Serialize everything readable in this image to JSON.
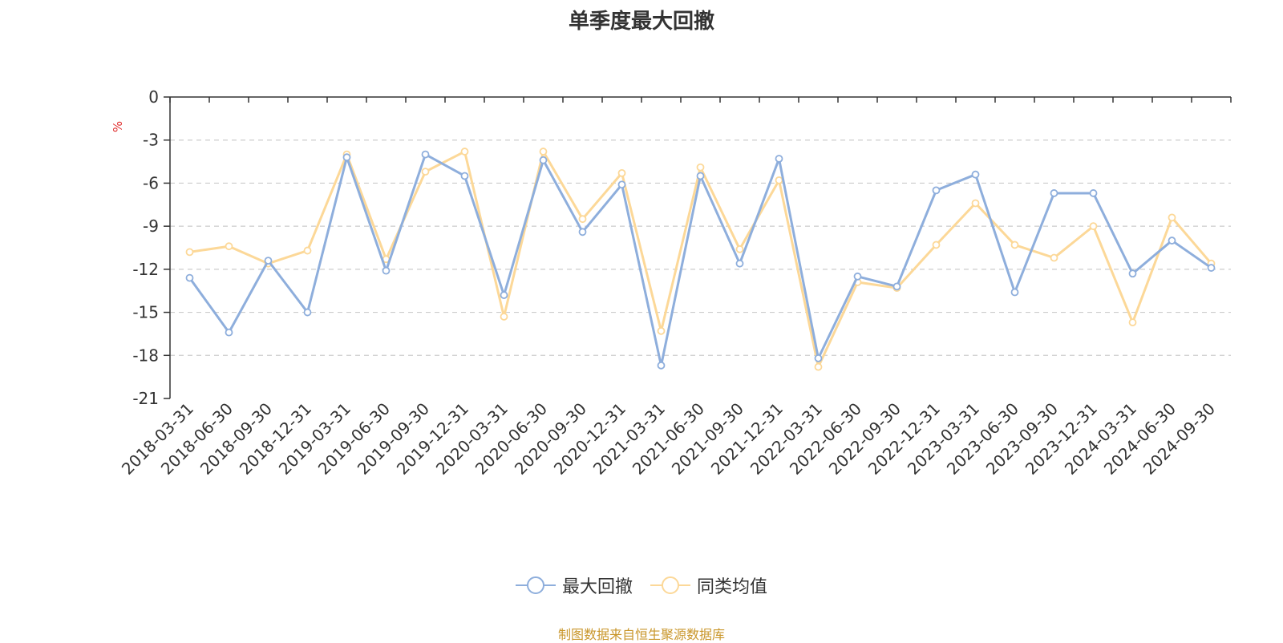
{
  "chart_data": {
    "type": "line",
    "title": "单季度最大回撤",
    "ylabel": "%",
    "ylim": [
      -21,
      0
    ],
    "yticks": [
      0,
      -3,
      -6,
      -9,
      -12,
      -15,
      -18,
      -21
    ],
    "grid": true,
    "legend_position": "bottom",
    "categories": [
      "2018-03-31",
      "2018-06-30",
      "2018-09-30",
      "2018-12-31",
      "2019-03-31",
      "2019-06-30",
      "2019-09-30",
      "2019-12-31",
      "2020-03-31",
      "2020-06-30",
      "2020-09-30",
      "2020-12-31",
      "2021-03-31",
      "2021-06-30",
      "2021-09-30",
      "2021-12-31",
      "2022-03-31",
      "2022-06-30",
      "2022-09-30",
      "2022-12-31",
      "2023-03-31",
      "2023-06-30",
      "2023-09-30",
      "2023-12-31",
      "2024-03-31",
      "2024-06-30",
      "2024-09-30"
    ],
    "series": [
      {
        "name": "最大回撤",
        "color": "#8eaedc",
        "values": [
          -12.6,
          -16.4,
          -11.4,
          -15.0,
          -4.2,
          -12.1,
          -4.0,
          -5.5,
          -13.8,
          -4.4,
          -9.4,
          -6.1,
          -18.7,
          -5.5,
          -11.6,
          -4.3,
          -18.2,
          -12.5,
          -13.2,
          -6.5,
          -5.4,
          -13.6,
          -6.7,
          -6.7,
          -12.3,
          -10.0,
          -11.9
        ]
      },
      {
        "name": "同类均值",
        "color": "#fcd898",
        "values": [
          -10.8,
          -10.4,
          -11.6,
          -10.7,
          -4.0,
          -11.3,
          -5.2,
          -3.8,
          -15.3,
          -3.8,
          -8.5,
          -5.3,
          -16.3,
          -4.9,
          -10.6,
          -5.8,
          -18.8,
          -12.9,
          -13.3,
          -10.3,
          -7.4,
          -10.3,
          -11.2,
          -9.0,
          -15.7,
          -8.4,
          -11.6
        ]
      }
    ]
  },
  "legend": {
    "items": [
      "最大回撤",
      "同类均值"
    ]
  },
  "source_note": "制图数据来自恒生聚源数据库"
}
